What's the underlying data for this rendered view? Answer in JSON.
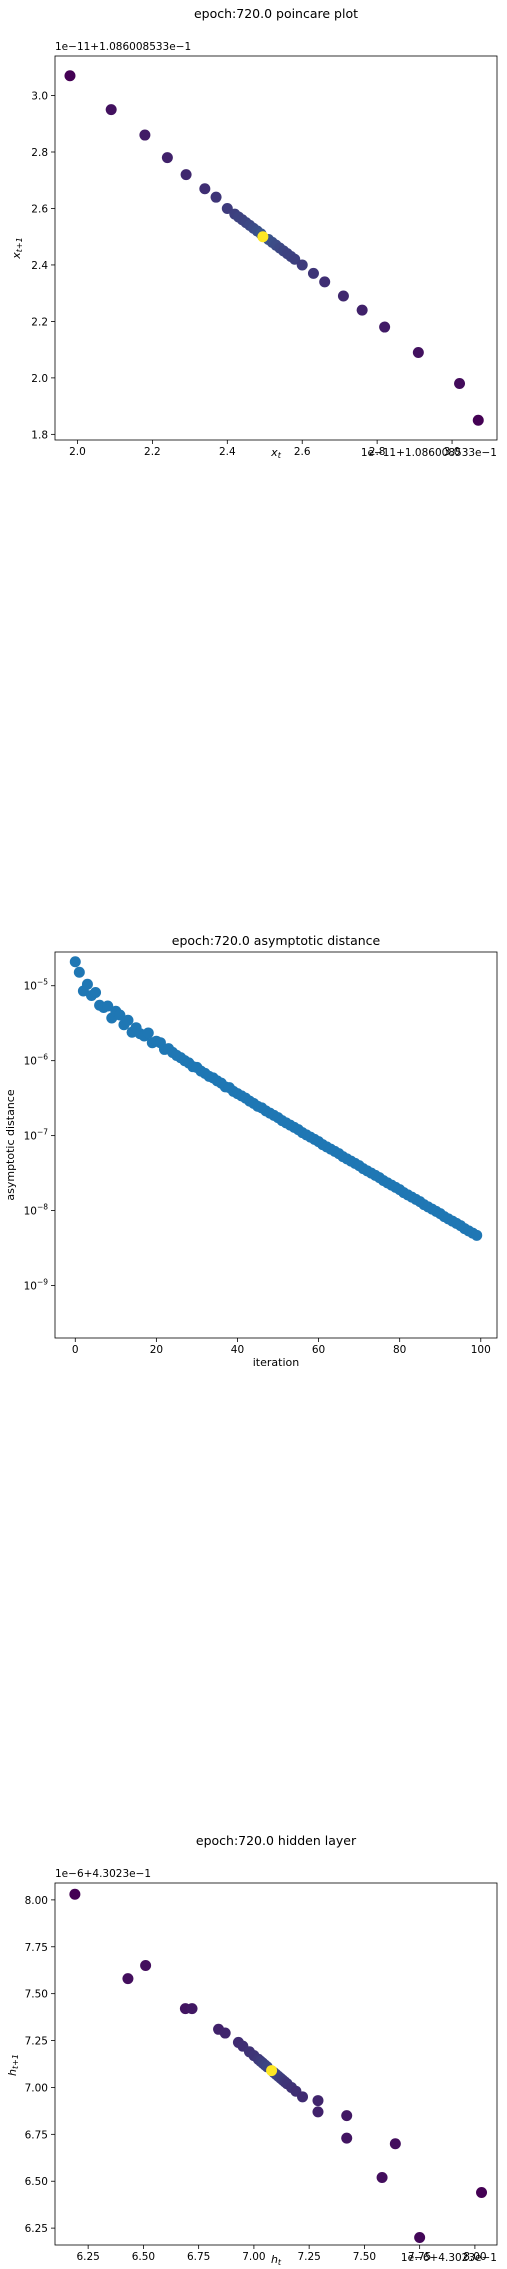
{
  "chart_data": [
    {
      "type": "scatter",
      "title": "epoch:720.0 poincare plot",
      "xlabel": "x_t",
      "ylabel": "x_{t+1}",
      "y_offset_text": "1e−11+1.086008533e−1",
      "x_offset_text": "1e−11+1.086008533e−1",
      "xlim": [
        1.94,
        3.12
      ],
      "ylim": [
        1.78,
        3.14
      ],
      "xticks": [
        2.0,
        2.2,
        2.4,
        2.6,
        2.8,
        3.0
      ],
      "yticks": [
        1.8,
        2.0,
        2.2,
        2.4,
        2.6,
        2.8,
        3.0
      ],
      "xtick_labels": [
        "2.0",
        "2.2",
        "2.4",
        "2.6",
        "2.8",
        "3.0"
      ],
      "ytick_labels": [
        "1.8",
        "2.0",
        "2.2",
        "2.4",
        "2.6",
        "2.8",
        "3.0"
      ],
      "points": [
        {
          "x": 1.98,
          "y": 3.07,
          "c": 0.0
        },
        {
          "x": 2.09,
          "y": 2.95,
          "c": 0.05
        },
        {
          "x": 2.18,
          "y": 2.86,
          "c": 0.08
        },
        {
          "x": 2.24,
          "y": 2.78,
          "c": 0.1
        },
        {
          "x": 2.29,
          "y": 2.72,
          "c": 0.12
        },
        {
          "x": 2.34,
          "y": 2.67,
          "c": 0.14
        },
        {
          "x": 2.37,
          "y": 2.64,
          "c": 0.16
        },
        {
          "x": 2.4,
          "y": 2.6,
          "c": 0.18
        },
        {
          "x": 2.42,
          "y": 2.58,
          "c": 0.19
        },
        {
          "x": 2.43,
          "y": 2.57,
          "c": 0.2
        },
        {
          "x": 2.44,
          "y": 2.56,
          "c": 0.2
        },
        {
          "x": 2.45,
          "y": 2.55,
          "c": 0.21
        },
        {
          "x": 2.46,
          "y": 2.54,
          "c": 0.22
        },
        {
          "x": 2.47,
          "y": 2.53,
          "c": 0.23
        },
        {
          "x": 2.48,
          "y": 2.52,
          "c": 0.24
        },
        {
          "x": 2.49,
          "y": 2.51,
          "c": 0.26
        },
        {
          "x": 2.51,
          "y": 2.49,
          "c": 0.26
        },
        {
          "x": 2.52,
          "y": 2.48,
          "c": 0.24
        },
        {
          "x": 2.53,
          "y": 2.47,
          "c": 0.23
        },
        {
          "x": 2.54,
          "y": 2.46,
          "c": 0.22
        },
        {
          "x": 2.55,
          "y": 2.45,
          "c": 0.21
        },
        {
          "x": 2.56,
          "y": 2.44,
          "c": 0.2
        },
        {
          "x": 2.57,
          "y": 2.43,
          "c": 0.2
        },
        {
          "x": 2.58,
          "y": 2.42,
          "c": 0.19
        },
        {
          "x": 2.6,
          "y": 2.4,
          "c": 0.18
        },
        {
          "x": 2.63,
          "y": 2.37,
          "c": 0.16
        },
        {
          "x": 2.66,
          "y": 2.34,
          "c": 0.14
        },
        {
          "x": 2.71,
          "y": 2.29,
          "c": 0.12
        },
        {
          "x": 2.76,
          "y": 2.24,
          "c": 0.1
        },
        {
          "x": 2.82,
          "y": 2.18,
          "c": 0.08
        },
        {
          "x": 2.91,
          "y": 2.09,
          "c": 0.05
        },
        {
          "x": 3.02,
          "y": 1.98,
          "c": 0.03
        },
        {
          "x": 3.07,
          "y": 1.85,
          "c": 0.0
        },
        {
          "x": 2.495,
          "y": 2.5,
          "c": 1.0
        }
      ]
    },
    {
      "type": "scatter",
      "title": "epoch:720.0 asymptotic distance",
      "xlabel": "iteration",
      "ylabel": "asymptotic distance",
      "yscale": "log",
      "xlim": [
        -5,
        104
      ],
      "ylim_exp": [
        -9.7,
        -4.55
      ],
      "xticks": [
        0,
        20,
        40,
        60,
        80,
        100
      ],
      "xtick_labels": [
        "0",
        "20",
        "40",
        "60",
        "80",
        "100"
      ],
      "yticks_exp": [
        -5,
        -6,
        -7,
        -8,
        -9
      ],
      "ytick_labels": [
        "10",
        "10",
        "10",
        "10",
        "10"
      ],
      "ytick_sups": [
        "−5",
        "−6",
        "−7",
        "−8",
        "−9"
      ],
      "color": "#1f77b4",
      "series_desc": "log10 distance at iterations 0..99",
      "log10_values": [
        -4.68,
        -4.82,
        -5.07,
        -4.98,
        -5.13,
        -5.09,
        -5.26,
        -5.29,
        -5.27,
        -5.43,
        -5.34,
        -5.39,
        -5.52,
        -5.46,
        -5.62,
        -5.56,
        -5.64,
        -5.67,
        -5.63,
        -5.76,
        -5.74,
        -5.76,
        -5.85,
        -5.84,
        -5.89,
        -5.93,
        -5.96,
        -6.0,
        -6.03,
        -6.08,
        -6.09,
        -6.14,
        -6.17,
        -6.21,
        -6.23,
        -6.27,
        -6.3,
        -6.35,
        -6.36,
        -6.41,
        -6.44,
        -6.47,
        -6.5,
        -6.54,
        -6.57,
        -6.61,
        -6.63,
        -6.67,
        -6.7,
        -6.73,
        -6.76,
        -6.8,
        -6.83,
        -6.86,
        -6.89,
        -6.92,
        -6.96,
        -6.99,
        -7.02,
        -7.05,
        -7.08,
        -7.12,
        -7.15,
        -7.18,
        -7.21,
        -7.24,
        -7.28,
        -7.31,
        -7.34,
        -7.37,
        -7.4,
        -7.44,
        -7.47,
        -7.5,
        -7.53,
        -7.56,
        -7.6,
        -7.63,
        -7.66,
        -7.69,
        -7.72,
        -7.76,
        -7.79,
        -7.82,
        -7.85,
        -7.88,
        -7.92,
        -7.95,
        -7.98,
        -8.01,
        -8.04,
        -8.08,
        -8.11,
        -8.14,
        -8.17,
        -8.2,
        -8.24,
        -8.27,
        -8.3,
        -8.33
      ]
    },
    {
      "type": "scatter",
      "title": "epoch:720.0 hidden layer",
      "xlabel": "h_t",
      "ylabel": "h_{t+1}",
      "y_offset_text": "1e−6+4.3023e−1",
      "x_offset_text": "1e−6+4.3023e−1",
      "xlim": [
        6.1,
        8.1
      ],
      "ylim": [
        6.16,
        8.09
      ],
      "xticks": [
        6.25,
        6.5,
        6.75,
        7.0,
        7.25,
        7.5,
        7.75,
        8.0
      ],
      "yticks": [
        6.25,
        6.5,
        6.75,
        7.0,
        7.25,
        7.5,
        7.75,
        8.0
      ],
      "xtick_labels": [
        "6.25",
        "6.50",
        "6.75",
        "7.00",
        "7.25",
        "7.50",
        "7.75",
        "8.00"
      ],
      "ytick_labels": [
        "6.25",
        "6.50",
        "6.75",
        "7.00",
        "7.25",
        "7.50",
        "7.75",
        "8.00"
      ],
      "points": [
        {
          "x": 6.19,
          "y": 8.03,
          "c": 0.0
        },
        {
          "x": 6.43,
          "y": 7.58,
          "c": 0.04
        },
        {
          "x": 6.51,
          "y": 7.65,
          "c": 0.04
        },
        {
          "x": 6.69,
          "y": 7.42,
          "c": 0.06
        },
        {
          "x": 6.72,
          "y": 7.42,
          "c": 0.07
        },
        {
          "x": 6.84,
          "y": 7.31,
          "c": 0.1
        },
        {
          "x": 6.87,
          "y": 7.29,
          "c": 0.11
        },
        {
          "x": 6.93,
          "y": 7.24,
          "c": 0.13
        },
        {
          "x": 6.95,
          "y": 7.22,
          "c": 0.14
        },
        {
          "x": 6.98,
          "y": 7.19,
          "c": 0.15
        },
        {
          "x": 7.0,
          "y": 7.17,
          "c": 0.16
        },
        {
          "x": 7.02,
          "y": 7.15,
          "c": 0.17
        },
        {
          "x": 7.03,
          "y": 7.14,
          "c": 0.18
        },
        {
          "x": 7.04,
          "y": 7.13,
          "c": 0.19
        },
        {
          "x": 7.05,
          "y": 7.12,
          "c": 0.2
        },
        {
          "x": 7.06,
          "y": 7.11,
          "c": 0.21
        },
        {
          "x": 7.09,
          "y": 7.08,
          "c": 0.22
        },
        {
          "x": 7.1,
          "y": 7.07,
          "c": 0.21
        },
        {
          "x": 7.11,
          "y": 7.06,
          "c": 0.2
        },
        {
          "x": 7.12,
          "y": 7.05,
          "c": 0.19
        },
        {
          "x": 7.13,
          "y": 7.04,
          "c": 0.18
        },
        {
          "x": 7.14,
          "y": 7.03,
          "c": 0.17
        },
        {
          "x": 7.15,
          "y": 7.02,
          "c": 0.16
        },
        {
          "x": 7.17,
          "y": 7.0,
          "c": 0.15
        },
        {
          "x": 7.19,
          "y": 6.98,
          "c": 0.14
        },
        {
          "x": 7.22,
          "y": 6.95,
          "c": 0.13
        },
        {
          "x": 7.29,
          "y": 6.93,
          "c": 0.11
        },
        {
          "x": 7.29,
          "y": 6.87,
          "c": 0.1
        },
        {
          "x": 7.42,
          "y": 6.85,
          "c": 0.07
        },
        {
          "x": 7.42,
          "y": 6.73,
          "c": 0.06
        },
        {
          "x": 7.58,
          "y": 6.52,
          "c": 0.04
        },
        {
          "x": 7.64,
          "y": 6.7,
          "c": 0.04
        },
        {
          "x": 7.75,
          "y": 6.2,
          "c": 0.02
        },
        {
          "x": 8.03,
          "y": 6.44,
          "c": 0.0
        },
        {
          "x": 7.08,
          "y": 7.09,
          "c": 1.0
        }
      ]
    }
  ]
}
